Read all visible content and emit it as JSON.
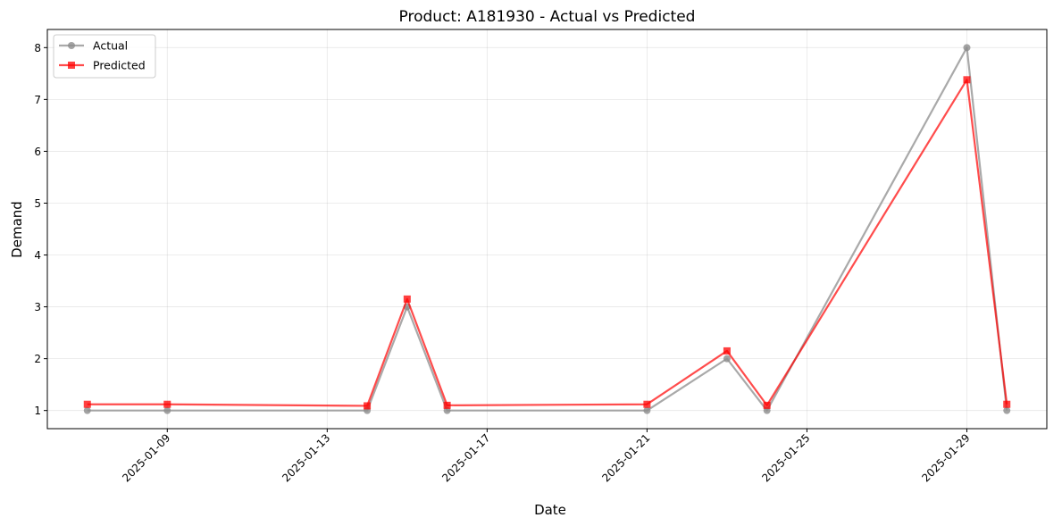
{
  "chart_data": {
    "type": "line",
    "title": "Product: A181930 - Actual vs Predicted",
    "xlabel": "Date",
    "ylabel": "Demand",
    "x": [
      "2025-01-07",
      "2025-01-09",
      "2025-01-14",
      "2025-01-15",
      "2025-01-16",
      "2025-01-21",
      "2025-01-23",
      "2025-01-24",
      "2025-01-29",
      "2025-01-30"
    ],
    "xlim": [
      "2025-01-06",
      "2025-01-31"
    ],
    "xticks": [
      "2025-01-09",
      "2025-01-13",
      "2025-01-17",
      "2025-01-21",
      "2025-01-25",
      "2025-01-29"
    ],
    "ylim": [
      0.65,
      8.35
    ],
    "yticks": [
      "1",
      "2",
      "3",
      "4",
      "5",
      "6",
      "7",
      "8"
    ],
    "grid": true,
    "legend_position": "top-left",
    "series": [
      {
        "name": "Actual",
        "marker": "circle",
        "color": "#8c8c8c",
        "values": [
          1,
          1,
          1,
          3,
          1,
          1,
          2,
          1,
          8,
          1
        ]
      },
      {
        "name": "Predicted",
        "marker": "square",
        "color": "#ff0000",
        "values": [
          1.12,
          1.12,
          1.09,
          3.15,
          1.1,
          1.12,
          2.15,
          1.1,
          7.38,
          1.12
        ]
      }
    ]
  }
}
